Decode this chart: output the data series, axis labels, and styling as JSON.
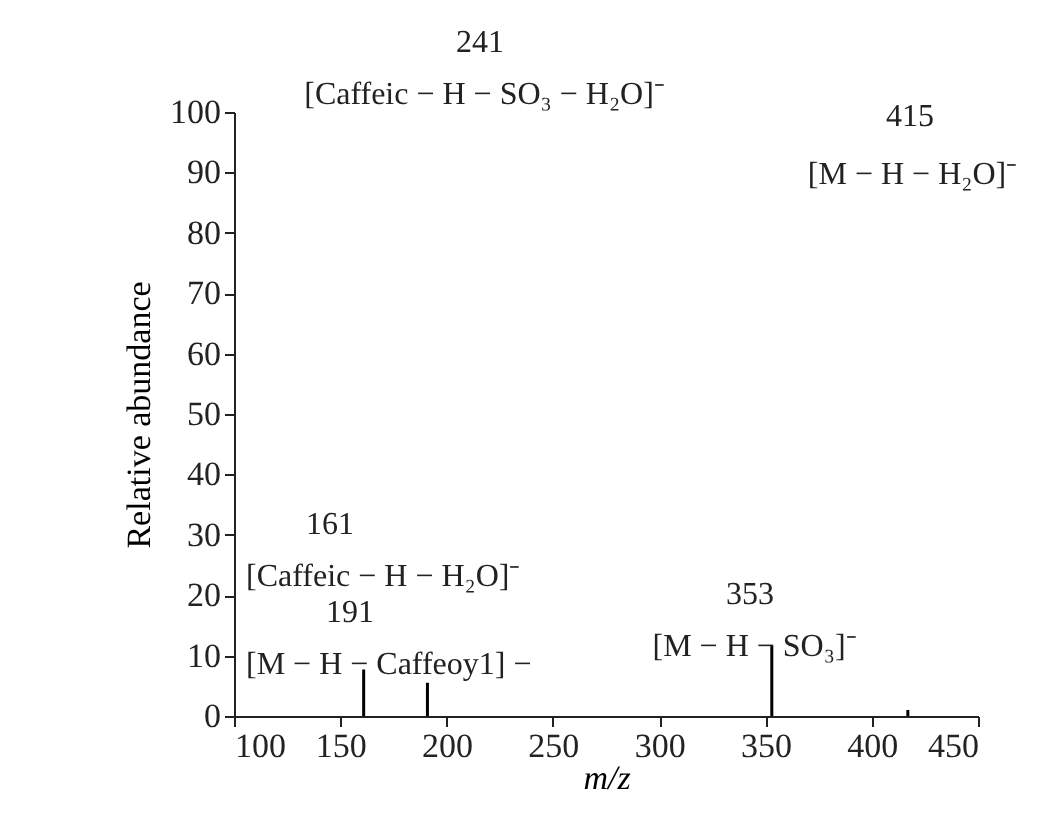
{
  "chart_data": {
    "type": "bar",
    "xlabel": "m/z",
    "ylabel": "Relative abundance",
    "x": [
      161,
      191,
      353,
      417
    ],
    "values": [
      7.7,
      5.5,
      11.6,
      1
    ],
    "color": "#000000",
    "xlim": [
      100,
      450
    ],
    "xticks": [
      100,
      150,
      200,
      250,
      300,
      350,
      400,
      450
    ],
    "ylim": [
      0,
      100
    ],
    "yticks": [
      0,
      10,
      20,
      30,
      40,
      50,
      60,
      70,
      80,
      90,
      100
    ],
    "grid": false,
    "annotations": [
      "241",
      "[Caffeic − H − SO₃ − H₂O]⁻",
      "415",
      "[M − H − H₂O]⁻",
      "161",
      "[Caffeic − H − H₂O]⁻",
      "191",
      "[M − H − Caffeoy1] −",
      "353",
      "[M − H − SO₃]⁻"
    ]
  }
}
